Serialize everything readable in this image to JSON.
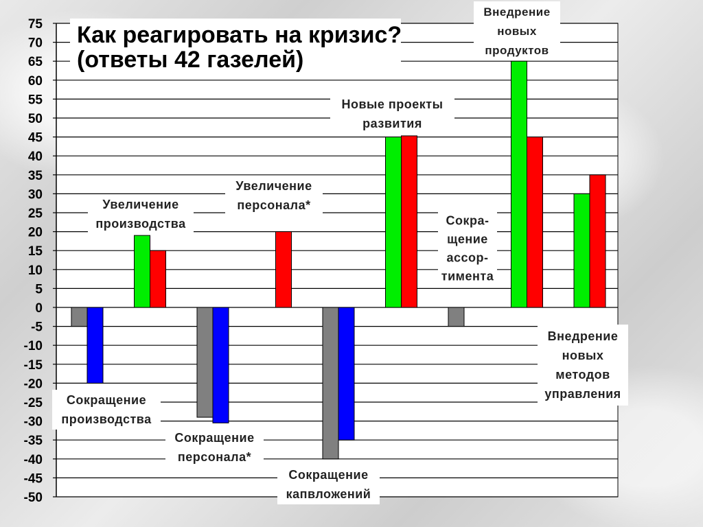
{
  "chart_data": {
    "type": "bar",
    "title": [
      "Как реагировать на кризис?",
      "(ответы 42 газелей)"
    ],
    "ylim": [
      -50,
      75
    ],
    "ytick_step": 5,
    "grid": true,
    "colors": {
      "gray": "#808080",
      "blue": "#0000ff",
      "green": "#00ee00",
      "red": "#ff0000",
      "plot_bg": "#ffffff",
      "grid": "#000000"
    },
    "bars": [
      {
        "group": 0,
        "slot": 0,
        "color": "gray",
        "value": -5
      },
      {
        "group": 0,
        "slot": 1,
        "color": "blue",
        "value": -20
      },
      {
        "group": 1,
        "slot": 0,
        "color": "green",
        "value": 19
      },
      {
        "group": 1,
        "slot": 1,
        "color": "red",
        "value": 15
      },
      {
        "group": 2,
        "slot": 0,
        "color": "gray",
        "value": -29
      },
      {
        "group": 2,
        "slot": 1,
        "color": "blue",
        "value": -30.5
      },
      {
        "group": 3,
        "slot": 1,
        "color": "red",
        "value": 20
      },
      {
        "group": 4,
        "slot": 0,
        "color": "gray",
        "value": -40
      },
      {
        "group": 4,
        "slot": 1,
        "color": "blue",
        "value": -35
      },
      {
        "group": 5,
        "slot": 0,
        "color": "green",
        "value": 45
      },
      {
        "group": 5,
        "slot": 1,
        "color": "red",
        "value": 45.3
      },
      {
        "group": 6,
        "slot": 0,
        "color": "gray",
        "value": -5
      },
      {
        "group": 7,
        "slot": 0,
        "color": "green",
        "value": 65
      },
      {
        "group": 7,
        "slot": 1,
        "color": "red",
        "value": 45
      },
      {
        "group": 8,
        "slot": 0,
        "color": "green",
        "value": 30
      },
      {
        "group": 8,
        "slot": 1,
        "color": "red",
        "value": 35
      }
    ],
    "annotations": [
      {
        "name": "reduce-production",
        "lines": [
          "Сокращение",
          "производства"
        ]
      },
      {
        "name": "increase-production",
        "lines": [
          "Увеличение",
          "производства"
        ]
      },
      {
        "name": "reduce-staff",
        "lines": [
          "Сокращение",
          "персонала*"
        ]
      },
      {
        "name": "increase-staff",
        "lines": [
          "Увеличение",
          "персонала*"
        ]
      },
      {
        "name": "reduce-capex",
        "lines": [
          "Сокращение",
          "капвложений"
        ]
      },
      {
        "name": "new-projects",
        "lines": [
          "Новые проекты",
          "развития"
        ]
      },
      {
        "name": "reduce-assortment",
        "lines": [
          "Сокра-",
          "щение",
          "ассор-",
          "тимента"
        ]
      },
      {
        "name": "new-products",
        "lines": [
          "Внедрение",
          "новых",
          "продуктов"
        ]
      },
      {
        "name": "new-methods",
        "lines": [
          "Внедрение",
          "новых",
          "методов",
          "управления"
        ]
      }
    ]
  }
}
